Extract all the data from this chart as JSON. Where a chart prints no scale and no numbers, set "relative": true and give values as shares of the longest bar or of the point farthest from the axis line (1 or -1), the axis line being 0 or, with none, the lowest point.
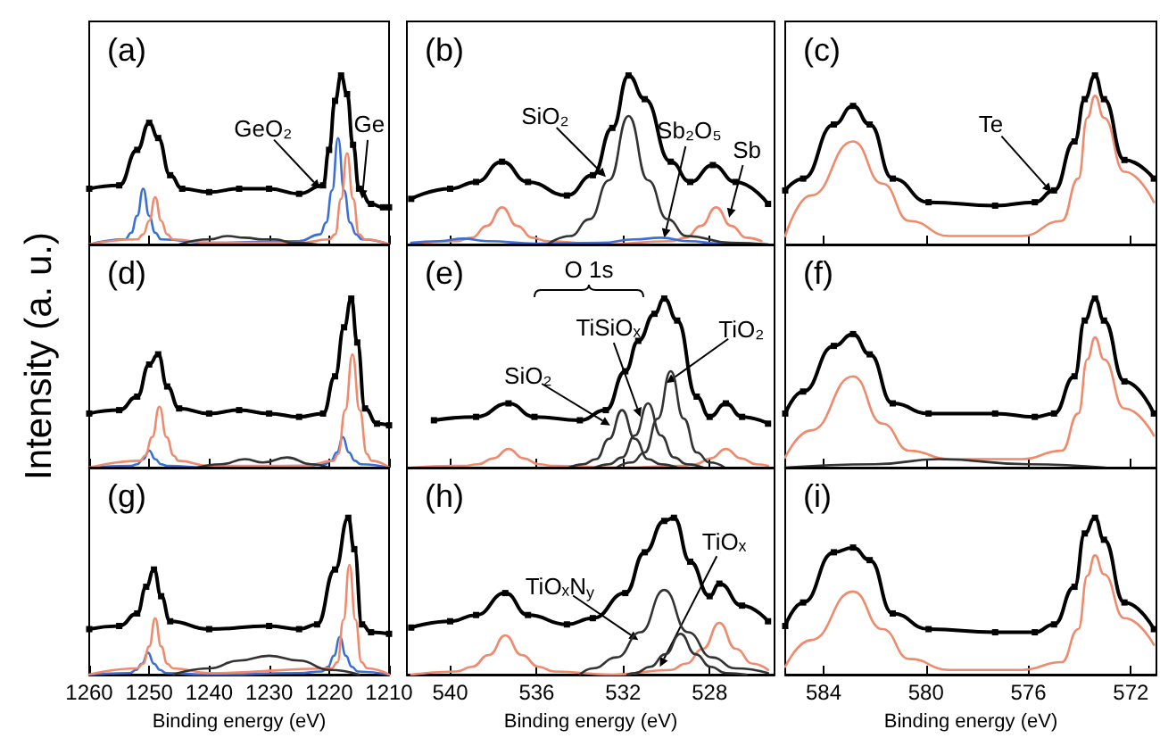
{
  "chart_data": [
    {
      "type": "line",
      "title": "(a)",
      "relative": true,
      "xlim": [
        1260,
        1210
      ],
      "xticks": [
        1260,
        1250,
        1240,
        1230,
        1220,
        1210
      ],
      "tick_labels": false,
      "series": [
        {
          "color": "#000000",
          "marker": "square",
          "x": [
            1260,
            1255,
            1252,
            1250,
            1248.5,
            1246.5,
            1244.5,
            1240,
            1235,
            1230,
            1225,
            1221,
            1220,
            1219,
            1218,
            1217,
            1216,
            1215,
            1213,
            1211,
            1210
          ],
          "values": [
            0.33,
            0.35,
            0.56,
            0.72,
            0.63,
            0.41,
            0.33,
            0.31,
            0.33,
            0.33,
            0.3,
            0.35,
            0.56,
            0.85,
            1,
            0.89,
            0.59,
            0.33,
            0.24,
            0.22,
            0.22
          ]
        },
        {
          "color": "#3a6fd8",
          "marker": "none",
          "x": [
            1260,
            1254,
            1253,
            1252,
            1251,
            1250,
            1249,
            1248,
            1240,
            1225,
            1221.5,
            1220.5,
            1219.5,
            1218.5,
            1217.5,
            1216.5,
            1215.5,
            1214.5,
            1210
          ],
          "values": [
            0,
            0.03,
            0.07,
            0.17,
            0.33,
            0.17,
            0.07,
            0.03,
            0.01,
            0.02,
            0.06,
            0.13,
            0.32,
            0.63,
            0.32,
            0.13,
            0.06,
            0.03,
            0
          ]
        },
        {
          "color": "#f08a6c",
          "marker": "none",
          "x": [
            1260,
            1252,
            1251,
            1250,
            1249,
            1248,
            1247,
            1246,
            1240,
            1225,
            1220,
            1219,
            1218,
            1217,
            1216,
            1215,
            1214,
            1210
          ],
          "values": [
            0,
            0.03,
            0.06,
            0.14,
            0.28,
            0.14,
            0.06,
            0.03,
            0.01,
            0.01,
            0.03,
            0.06,
            0.27,
            0.54,
            0.27,
            0.06,
            0.03,
            0
          ]
        },
        {
          "color": "#333333",
          "marker": "none",
          "x": [
            1245,
            1240,
            1237,
            1234,
            1231,
            1229,
            1226,
            1222
          ],
          "values": [
            0,
            0.03,
            0.05,
            0.04,
            0.03,
            0.03,
            0.01,
            0
          ]
        }
      ],
      "annotations": [
        {
          "text": "GeO₂",
          "x": 1221.5,
          "y": 0.33
        },
        {
          "text": "Ge",
          "x": 1214.5,
          "y": 0.27
        }
      ]
    },
    {
      "type": "line",
      "title": "(b)",
      "relative": true,
      "xlim": [
        542,
        525
      ],
      "xticks": [
        540,
        536,
        532,
        528
      ],
      "tick_labels": false,
      "series": [
        {
          "color": "#000000",
          "marker": "square",
          "x": [
            541.8,
            540,
            538.8,
            537.6,
            536.4,
            534.6,
            533.4,
            532.5,
            531.75,
            531,
            529.8,
            528.9,
            527.85,
            526.8,
            525.3
          ],
          "values": [
            0.27,
            0.33,
            0.37,
            0.49,
            0.37,
            0.29,
            0.41,
            0.69,
            1,
            0.86,
            0.49,
            0.37,
            0.47,
            0.37,
            0.24
          ]
        },
        {
          "color": "#f08a6c",
          "marker": "none",
          "x": [
            541.8,
            539.7,
            539,
            538.3,
            537.6,
            536.9,
            536.2,
            535.5,
            533,
            529.8,
            529.1,
            528.4,
            527.7,
            527,
            526.3,
            525.6
          ],
          "values": [
            0,
            0.02,
            0.04,
            0.11,
            0.22,
            0.11,
            0.04,
            0.02,
            0,
            0.02,
            0.04,
            0.11,
            0.22,
            0.11,
            0.04,
            0.02
          ]
        },
        {
          "color": "#3a6fd8",
          "marker": "none",
          "x": [
            541.8,
            540.5,
            539.4,
            538.3,
            536,
            533,
            531.5,
            530.25,
            529,
            527.5,
            525.3
          ],
          "values": [
            0.01,
            0.02,
            0.035,
            0.02,
            0.005,
            0.01,
            0.03,
            0.04,
            0.02,
            0.005,
            0
          ]
        },
        {
          "color": "#333333",
          "marker": "none",
          "x": [
            535.5,
            534.45,
            533.55,
            532.65,
            531.75,
            530.85,
            529.95,
            529.05,
            527,
            525.3
          ],
          "values": [
            0,
            0.05,
            0.15,
            0.38,
            0.76,
            0.38,
            0.15,
            0.05,
            0.01,
            0
          ]
        }
      ],
      "annotations": [
        {
          "text": "SiO₂",
          "x": 532.8,
          "y": 0.4
        },
        {
          "text": "Sb₂O₅",
          "x": 530.1,
          "y": 0.04
        },
        {
          "text": "Sb",
          "x": 527.1,
          "y": 0.16
        }
      ]
    },
    {
      "type": "line",
      "title": "(c)",
      "relative": true,
      "xlim": [
        585.5,
        571
      ],
      "xticks": [
        584,
        580,
        576,
        572
      ],
      "tick_labels": false,
      "series": [
        {
          "color": "#000000",
          "marker": "square",
          "x": [
            585.5,
            584.8,
            583.6,
            582.85,
            582.2,
            581.3,
            579.9,
            577.3,
            575.75,
            575,
            574.2,
            573.8,
            573.4,
            573.05,
            572.25,
            571.1
          ],
          "values": [
            0.32,
            0.39,
            0.71,
            0.82,
            0.71,
            0.39,
            0.25,
            0.23,
            0.25,
            0.32,
            0.61,
            0.86,
            1,
            0.86,
            0.5,
            0.39
          ]
        },
        {
          "color": "#f08a6c",
          "marker": "none",
          "x": [
            585.5,
            584.5,
            582.85,
            581.7,
            580.65,
            579.1,
            576.25,
            574.7,
            574.05,
            573.7,
            573.4,
            573.05,
            572.25,
            571.1
          ],
          "values": [
            0.05,
            0.29,
            0.61,
            0.36,
            0.14,
            0.05,
            0.05,
            0.14,
            0.39,
            0.75,
            0.88,
            0.75,
            0.43,
            0.25
          ]
        }
      ],
      "annotations": [
        {
          "text": "Te",
          "x": 575.1,
          "y": 0.31
        }
      ]
    },
    {
      "type": "line",
      "title": "(d)",
      "ylabel": "Intensity (a. u.)",
      "relative": true,
      "xlim": [
        1260,
        1210
      ],
      "xticks": [
        1260,
        1250,
        1240,
        1230,
        1220,
        1210
      ],
      "tick_labels": false,
      "series": [
        {
          "color": "#000000",
          "marker": "square",
          "x": [
            1260,
            1255,
            1252,
            1250,
            1248.5,
            1247,
            1245,
            1240,
            1235,
            1230,
            1225,
            1221,
            1219,
            1217.5,
            1216.3,
            1215.3,
            1214,
            1212,
            1210
          ],
          "values": [
            0.32,
            0.34,
            0.42,
            0.61,
            0.67,
            0.48,
            0.35,
            0.32,
            0.34,
            0.32,
            0.3,
            0.32,
            0.54,
            0.83,
            1,
            0.74,
            0.35,
            0.26,
            0.25
          ]
        },
        {
          "color": "#3a6fd8",
          "marker": "none",
          "x": [
            1260,
            1253,
            1252,
            1251,
            1250,
            1249,
            1248,
            1247,
            1240,
            1224,
            1220.7,
            1219.7,
            1218.7,
            1217.7,
            1216.7,
            1215.7,
            1214.7,
            1210
          ],
          "values": [
            0,
            0.01,
            0.02,
            0.05,
            0.1,
            0.05,
            0.02,
            0.01,
            0,
            0.01,
            0.02,
            0.04,
            0.09,
            0.18,
            0.09,
            0.04,
            0.02,
            0
          ]
        },
        {
          "color": "#f08a6c",
          "marker": "none",
          "x": [
            1260,
            1251.5,
            1250.7,
            1249.5,
            1248.3,
            1247.1,
            1245.9,
            1245.1,
            1240,
            1224,
            1219.3,
            1218.5,
            1217.3,
            1216.1,
            1214.9,
            1213.7,
            1212.9,
            1210
          ],
          "values": [
            0,
            0.04,
            0.07,
            0.18,
            0.36,
            0.18,
            0.07,
            0.04,
            0.01,
            0.01,
            0.04,
            0.08,
            0.34,
            0.67,
            0.34,
            0.08,
            0.04,
            0
          ]
        },
        {
          "color": "#333333",
          "marker": "none",
          "x": [
            1242,
            1238,
            1234,
            1231,
            1227,
            1223,
            1220
          ],
          "values": [
            0,
            0.02,
            0.05,
            0.03,
            0.06,
            0.02,
            0
          ]
        }
      ]
    },
    {
      "type": "line",
      "title": "(e)",
      "relative": true,
      "xlim": [
        542,
        525
      ],
      "xticks": [
        540,
        536,
        532,
        528
      ],
      "tick_labels": false,
      "series": [
        {
          "color": "#000000",
          "marker": "square",
          "x": [
            540.75,
            538.8,
            537.3,
            536.1,
            534,
            532.8,
            531.9,
            531.3,
            530.55,
            530.1,
            529.5,
            528.6,
            528,
            527.25,
            526.5,
            525.3
          ],
          "values": [
            0.28,
            0.3,
            0.38,
            0.3,
            0.28,
            0.34,
            0.57,
            0.75,
            0.91,
            1,
            0.87,
            0.42,
            0.3,
            0.38,
            0.3,
            0.26
          ]
        },
        {
          "color": "#f08a6c",
          "marker": "none",
          "x": [
            541.8,
            539.4,
            538.7,
            538,
            537.3,
            536.6,
            535.9,
            535.2,
            532,
            529.35,
            528.65,
            527.95,
            527.25,
            526.55,
            525.85,
            525.3
          ],
          "values": [
            0,
            0.01,
            0.02,
            0.055,
            0.11,
            0.055,
            0.02,
            0.01,
            0,
            0.01,
            0.02,
            0.055,
            0.11,
            0.055,
            0.02,
            0.01
          ]
        },
        {
          "color": "#333333",
          "marker": "none",
          "x": [
            534.5,
            533.85,
            533.25,
            532.65,
            532.05,
            531.45,
            530.85,
            530.25,
            529.5
          ],
          "values": [
            0,
            0.02,
            0.05,
            0.17,
            0.34,
            0.17,
            0.05,
            0.02,
            0
          ]
        },
        {
          "color": "#333333",
          "marker": "none",
          "x": [
            533.3,
            532.65,
            532.05,
            531.45,
            530.85,
            530.25,
            529.65,
            529.05,
            528.3
          ],
          "values": [
            0,
            0.02,
            0.06,
            0.19,
            0.38,
            0.19,
            0.06,
            0.02,
            0
          ]
        },
        {
          "color": "#333333",
          "marker": "none",
          "x": [
            532.3,
            531.6,
            531,
            530.4,
            529.8,
            529.2,
            528.6,
            528,
            527.3
          ],
          "values": [
            0,
            0.03,
            0.09,
            0.29,
            0.57,
            0.29,
            0.09,
            0.03,
            0
          ]
        }
      ],
      "annotations": [
        "O 1s",
        {
          "text": "SiO₂",
          "x": 532.6,
          "y": 0.25
        },
        {
          "text": "TiSiOₓ",
          "x": 531.2,
          "y": 0.3
        },
        {
          "text": "TiO₂",
          "x": 530,
          "y": 0.5
        }
      ]
    },
    {
      "type": "line",
      "title": "(f)",
      "relative": true,
      "xlim": [
        585.5,
        571
      ],
      "xticks": [
        584,
        580,
        576,
        572
      ],
      "tick_labels": false,
      "series": [
        {
          "color": "#000000",
          "marker": "square",
          "x": [
            585.5,
            584.8,
            583.6,
            582.85,
            582.2,
            581.3,
            579.9,
            577.3,
            575.75,
            575,
            574.2,
            573.8,
            573.4,
            573.05,
            572.25,
            571.1
          ],
          "values": [
            0.32,
            0.45,
            0.72,
            0.79,
            0.67,
            0.38,
            0.32,
            0.32,
            0.3,
            0.32,
            0.54,
            0.87,
            1,
            0.87,
            0.51,
            0.32
          ]
        },
        {
          "color": "#f08a6c",
          "marker": "none",
          "x": [
            585.5,
            584.5,
            582.85,
            581.7,
            580.65,
            579.1,
            576.25,
            574.7,
            574.05,
            573.7,
            573.4,
            573.05,
            572.25,
            571.1
          ],
          "values": [
            0.06,
            0.22,
            0.54,
            0.26,
            0.1,
            0.05,
            0.05,
            0.1,
            0.32,
            0.64,
            0.77,
            0.64,
            0.35,
            0.19
          ]
        },
        {
          "color": "#333333",
          "marker": "none",
          "x": [
            585.5,
            582,
            579.5,
            576,
            573
          ],
          "values": [
            0,
            0.02,
            0.05,
            0.02,
            0
          ]
        }
      ]
    },
    {
      "type": "line",
      "title": "(g)",
      "xlabel": "Binding energy (eV)",
      "relative": true,
      "xlim": [
        1260,
        1210
      ],
      "xticks": [
        1260,
        1250,
        1240,
        1230,
        1220,
        1210
      ],
      "tick_labels": "x",
      "series": [
        {
          "color": "#000000",
          "marker": "square",
          "x": [
            1260,
            1255,
            1252,
            1250.5,
            1249.2,
            1248,
            1246.5,
            1240,
            1230,
            1225,
            1222,
            1219,
            1216.8,
            1215.8,
            1214.5,
            1213,
            1210
          ],
          "values": [
            0.29,
            0.31,
            0.39,
            0.56,
            0.67,
            0.5,
            0.34,
            0.29,
            0.31,
            0.29,
            0.32,
            0.67,
            1,
            0.8,
            0.32,
            0.27,
            0.26
          ]
        },
        {
          "color": "#3a6fd8",
          "marker": "none",
          "x": [
            1260,
            1253.2,
            1252.2,
            1251.2,
            1250.2,
            1249.2,
            1248.2,
            1247.2,
            1240,
            1225,
            1221.2,
            1220.2,
            1219.2,
            1218.2,
            1217.2,
            1216.2,
            1215.2,
            1210
          ],
          "values": [
            0,
            0.01,
            0.03,
            0.07,
            0.14,
            0.07,
            0.03,
            0.01,
            0,
            0.01,
            0.02,
            0.05,
            0.12,
            0.24,
            0.12,
            0.05,
            0.02,
            0
          ]
        },
        {
          "color": "#f08a6c",
          "marker": "none",
          "x": [
            1260,
            1252,
            1251,
            1250,
            1249,
            1248,
            1247,
            1246,
            1240,
            1219.6,
            1218.6,
            1217.6,
            1216.6,
            1215.6,
            1214.6,
            1213.6,
            1210
          ],
          "values": [
            0,
            0.04,
            0.07,
            0.18,
            0.36,
            0.18,
            0.07,
            0.04,
            0.01,
            0.04,
            0.08,
            0.35,
            0.7,
            0.35,
            0.08,
            0.04,
            0
          ]
        },
        {
          "color": "#333333",
          "marker": "none",
          "x": [
            1246,
            1240,
            1235,
            1230,
            1225,
            1220,
            1215
          ],
          "values": [
            0,
            0.04,
            0.09,
            0.12,
            0.09,
            0.03,
            0
          ]
        }
      ]
    },
    {
      "type": "line",
      "title": "(h)",
      "xlabel": "Binding energy (eV)",
      "relative": true,
      "xlim": [
        542,
        525
      ],
      "xticks": [
        540,
        536,
        532,
        528
      ],
      "tick_labels": "x",
      "series": [
        {
          "color": "#000000",
          "marker": "square",
          "x": [
            541.8,
            540,
            538.8,
            537.45,
            536.4,
            534.6,
            533.4,
            531.9,
            531,
            530.1,
            529.65,
            528.9,
            528,
            527.55,
            526.5,
            525.3
          ],
          "values": [
            0.3,
            0.34,
            0.38,
            0.52,
            0.38,
            0.32,
            0.36,
            0.52,
            0.78,
            0.98,
            1,
            0.72,
            0.5,
            0.58,
            0.44,
            0.34
          ]
        },
        {
          "color": "#f08a6c",
          "marker": "none",
          "x": [
            541.8,
            539.7,
            539,
            538.2,
            537.45,
            536.7,
            535.9,
            535.2,
            532.5,
            529.8,
            529.1,
            528.3,
            527.55,
            526.8,
            526,
            525.3
          ],
          "values": [
            0,
            0.02,
            0.05,
            0.125,
            0.25,
            0.125,
            0.05,
            0.02,
            0,
            0.03,
            0.07,
            0.165,
            0.33,
            0.165,
            0.07,
            0.03
          ]
        },
        {
          "color": "#333333",
          "marker": "none",
          "x": [
            534,
            533.4,
            532.3,
            531.2,
            530.1,
            529,
            527.9,
            526.8,
            525.3
          ],
          "values": [
            0,
            0.04,
            0.11,
            0.27,
            0.54,
            0.27,
            0.11,
            0.04,
            0.01
          ]
        },
        {
          "color": "#333333",
          "marker": "none",
          "x": [
            531.8,
            531.45,
            530.75,
            530.05,
            529.35,
            528.65,
            527.95,
            527.25,
            526.3
          ],
          "values": [
            0,
            0.01,
            0.05,
            0.13,
            0.26,
            0.13,
            0.05,
            0.01,
            0
          ]
        }
      ],
      "annotations": [
        {
          "text": "TiOₓN$_{y}$",
          "x": 531.3,
          "y": 0.22
        },
        {
          "text": "TiOₓ",
          "x": 530.3,
          "y": 0.05
        }
      ]
    },
    {
      "type": "line",
      "title": "(i)",
      "xlabel": "Binding energy (eV)",
      "relative": true,
      "xlim": [
        585.5,
        571
      ],
      "xticks": [
        584,
        580,
        576,
        572
      ],
      "tick_labels": "x",
      "series": [
        {
          "color": "#000000",
          "marker": "square",
          "x": [
            585.5,
            584.8,
            583.6,
            582.85,
            582.2,
            581.3,
            579.9,
            577.3,
            575.75,
            575,
            574.2,
            573.8,
            573.4,
            573.05,
            572.25,
            571.1
          ],
          "values": [
            0.31,
            0.46,
            0.78,
            0.81,
            0.73,
            0.39,
            0.29,
            0.27,
            0.27,
            0.32,
            0.56,
            0.9,
            1,
            0.86,
            0.46,
            0.29
          ]
        },
        {
          "color": "#f08a6c",
          "marker": "none",
          "x": [
            585.5,
            584.5,
            582.85,
            581.7,
            580.65,
            579.1,
            576.25,
            574.7,
            574.05,
            573.7,
            573.4,
            573.05,
            572.25,
            571.1
          ],
          "values": [
            0.05,
            0.22,
            0.53,
            0.29,
            0.1,
            0.03,
            0.03,
            0.08,
            0.29,
            0.63,
            0.76,
            0.64,
            0.36,
            0.19
          ]
        }
      ]
    }
  ]
}
